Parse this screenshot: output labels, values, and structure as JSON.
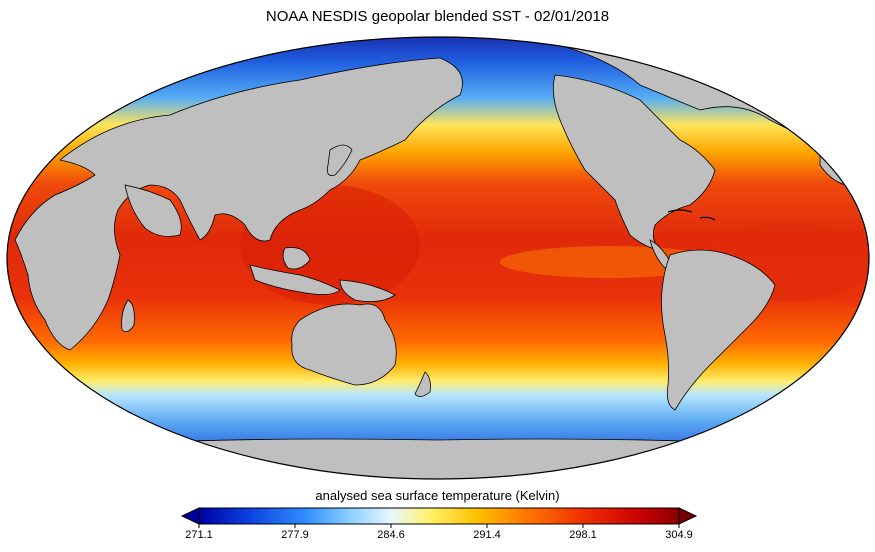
{
  "title": "NOAA NESDIS geopolar blended SST - 02/01/2018",
  "colorbar": {
    "label": "analysed sea surface temperature (Kelvin)",
    "ticks": [
      "271.1",
      "277.9",
      "284.6",
      "291.4",
      "298.1",
      "304.9"
    ],
    "min": 271.1,
    "max": 304.9,
    "extend": "both",
    "colors": [
      "#0000a0",
      "#0a3ee0",
      "#2f8cff",
      "#8fd3ff",
      "#e8f6ff",
      "#fff26a",
      "#ffc000",
      "#ff7800",
      "#f03000",
      "#c80000",
      "#7a0000"
    ]
  },
  "map": {
    "projection": "Mollweide",
    "land_color": "#bfbfbf",
    "coastline_color": "#000000"
  }
}
